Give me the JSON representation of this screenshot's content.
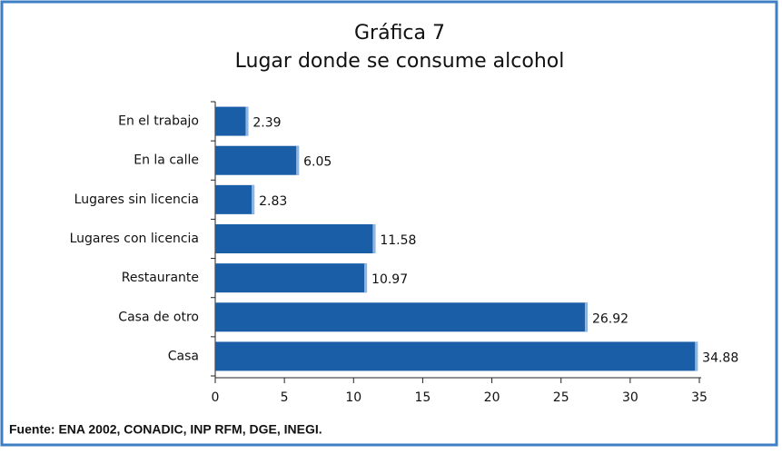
{
  "chart_data": {
    "type": "bar",
    "orientation": "horizontal",
    "title": "Gráfica 7",
    "subtitle": "Lugar donde se consume alcohol",
    "categories": [
      "En el trabajo",
      "En la calle",
      "Lugares sin licencia",
      "Lugares con licencia",
      "Restaurante",
      "Casa de otro",
      "Casa"
    ],
    "values": [
      2.39,
      6.05,
      2.83,
      11.58,
      10.97,
      26.92,
      34.88
    ],
    "color": "#1a5ea8",
    "xlim": [
      0,
      35
    ],
    "xticks": [
      0,
      5,
      10,
      15,
      20,
      25,
      30,
      35
    ],
    "grid": false,
    "source": "Fuente: ENA 2002, CONADIC, INP RFM, DGE, INEGI."
  }
}
